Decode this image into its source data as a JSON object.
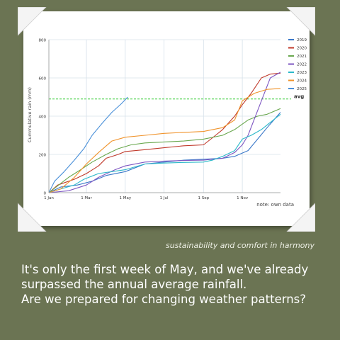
{
  "card": {
    "tagline": "sustainability and comfort in harmony",
    "message_lines": [
      "It's only the first week of May, and we've already",
      "surpassed the annual average rainfall.",
      "Are we prepared for changing weather patterns?"
    ]
  },
  "chart_data": {
    "type": "line",
    "title": "",
    "xlabel": "",
    "ylabel": "Cummulative rain (mm)",
    "ylim": [
      0,
      800
    ],
    "yticks": [
      0,
      200,
      400,
      600,
      800
    ],
    "xlim": [
      "01-01",
      "12-31"
    ],
    "xticks": [
      {
        "date": "01-01",
        "label": "1 Jan"
      },
      {
        "date": "03-01",
        "label": "1 Mar"
      },
      {
        "date": "05-01",
        "label": "1 May"
      },
      {
        "date": "07-01",
        "label": "1 Jul"
      },
      {
        "date": "09-01",
        "label": "1 Sep"
      },
      {
        "date": "11-01",
        "label": "1 Nov"
      }
    ],
    "grid": true,
    "legend_position": "right",
    "note": "note: own data",
    "reference_line": {
      "label": "avg",
      "value": 490,
      "color": "#33cc33",
      "style": "dashed"
    },
    "series": [
      {
        "name": "2019",
        "color": "#3a78c9",
        "points": [
          [
            "01-01",
            0
          ],
          [
            "01-20",
            30
          ],
          [
            "02-15",
            40
          ],
          [
            "03-10",
            60
          ],
          [
            "04-01",
            90
          ],
          [
            "05-01",
            110
          ],
          [
            "06-01",
            150
          ],
          [
            "07-01",
            160
          ],
          [
            "08-01",
            170
          ],
          [
            "09-01",
            175
          ],
          [
            "10-01",
            180
          ],
          [
            "10-20",
            190
          ],
          [
            "11-10",
            220
          ],
          [
            "11-25",
            280
          ],
          [
            "12-10",
            340
          ],
          [
            "12-31",
            420
          ]
        ]
      },
      {
        "name": "2020",
        "color": "#c0392b",
        "points": [
          [
            "01-01",
            0
          ],
          [
            "01-15",
            40
          ],
          [
            "02-10",
            70
          ],
          [
            "03-01",
            100
          ],
          [
            "03-20",
            140
          ],
          [
            "04-01",
            180
          ],
          [
            "04-20",
            200
          ],
          [
            "05-01",
            215
          ],
          [
            "06-01",
            225
          ],
          [
            "07-01",
            235
          ],
          [
            "08-01",
            245
          ],
          [
            "09-01",
            250
          ],
          [
            "09-20",
            300
          ],
          [
            "10-01",
            330
          ],
          [
            "10-20",
            400
          ],
          [
            "11-01",
            460
          ],
          [
            "11-15",
            520
          ],
          [
            "12-01",
            600
          ],
          [
            "12-15",
            620
          ],
          [
            "12-31",
            625
          ]
        ]
      },
      {
        "name": "2021",
        "color": "#6aa84f",
        "points": [
          [
            "01-01",
            0
          ],
          [
            "02-01",
            80
          ],
          [
            "02-20",
            120
          ],
          [
            "03-10",
            160
          ],
          [
            "04-01",
            200
          ],
          [
            "04-20",
            230
          ],
          [
            "05-10",
            250
          ],
          [
            "06-01",
            260
          ],
          [
            "07-01",
            265
          ],
          [
            "08-01",
            270
          ],
          [
            "09-01",
            280
          ],
          [
            "10-01",
            300
          ],
          [
            "10-20",
            330
          ],
          [
            "11-10",
            380
          ],
          [
            "11-25",
            400
          ],
          [
            "12-10",
            410
          ],
          [
            "12-31",
            440
          ]
        ]
      },
      {
        "name": "2022",
        "color": "#7e57c2",
        "points": [
          [
            "01-01",
            0
          ],
          [
            "02-01",
            10
          ],
          [
            "03-01",
            40
          ],
          [
            "03-20",
            80
          ],
          [
            "04-15",
            120
          ],
          [
            "05-01",
            140
          ],
          [
            "06-01",
            160
          ],
          [
            "07-01",
            165
          ],
          [
            "08-01",
            168
          ],
          [
            "09-01",
            170
          ],
          [
            "10-01",
            180
          ],
          [
            "10-20",
            210
          ],
          [
            "11-01",
            250
          ],
          [
            "11-10",
            300
          ],
          [
            "12-01",
            480
          ],
          [
            "12-15",
            600
          ],
          [
            "12-31",
            630
          ]
        ]
      },
      {
        "name": "2023",
        "color": "#2bb8c9",
        "points": [
          [
            "01-01",
            0
          ],
          [
            "01-20",
            20
          ],
          [
            "02-10",
            40
          ],
          [
            "02-25",
            70
          ],
          [
            "03-20",
            100
          ],
          [
            "04-10",
            110
          ],
          [
            "05-01",
            120
          ],
          [
            "06-01",
            150
          ],
          [
            "07-01",
            155
          ],
          [
            "08-01",
            158
          ],
          [
            "09-01",
            160
          ],
          [
            "09-15",
            170
          ],
          [
            "10-01",
            190
          ],
          [
            "10-20",
            220
          ],
          [
            "11-01",
            280
          ],
          [
            "11-15",
            300
          ],
          [
            "12-01",
            330
          ],
          [
            "12-31",
            410
          ]
        ]
      },
      {
        "name": "2024",
        "color": "#f0932b",
        "points": [
          [
            "01-01",
            0
          ],
          [
            "01-20",
            20
          ],
          [
            "02-10",
            80
          ],
          [
            "03-01",
            150
          ],
          [
            "03-20",
            210
          ],
          [
            "04-10",
            270
          ],
          [
            "05-01",
            290
          ],
          [
            "06-01",
            300
          ],
          [
            "07-01",
            310
          ],
          [
            "08-01",
            315
          ],
          [
            "09-01",
            320
          ],
          [
            "10-01",
            340
          ],
          [
            "10-20",
            380
          ],
          [
            "11-01",
            480
          ],
          [
            "11-20",
            520
          ],
          [
            "12-10",
            540
          ],
          [
            "12-31",
            545
          ]
        ]
      },
      {
        "name": "2025",
        "color": "#4a90d9",
        "points": [
          [
            "01-01",
            0
          ],
          [
            "01-10",
            60
          ],
          [
            "01-25",
            110
          ],
          [
            "02-10",
            170
          ],
          [
            "02-25",
            230
          ],
          [
            "03-10",
            300
          ],
          [
            "03-25",
            360
          ],
          [
            "04-10",
            420
          ],
          [
            "04-25",
            465
          ],
          [
            "05-05",
            500
          ]
        ]
      }
    ]
  }
}
